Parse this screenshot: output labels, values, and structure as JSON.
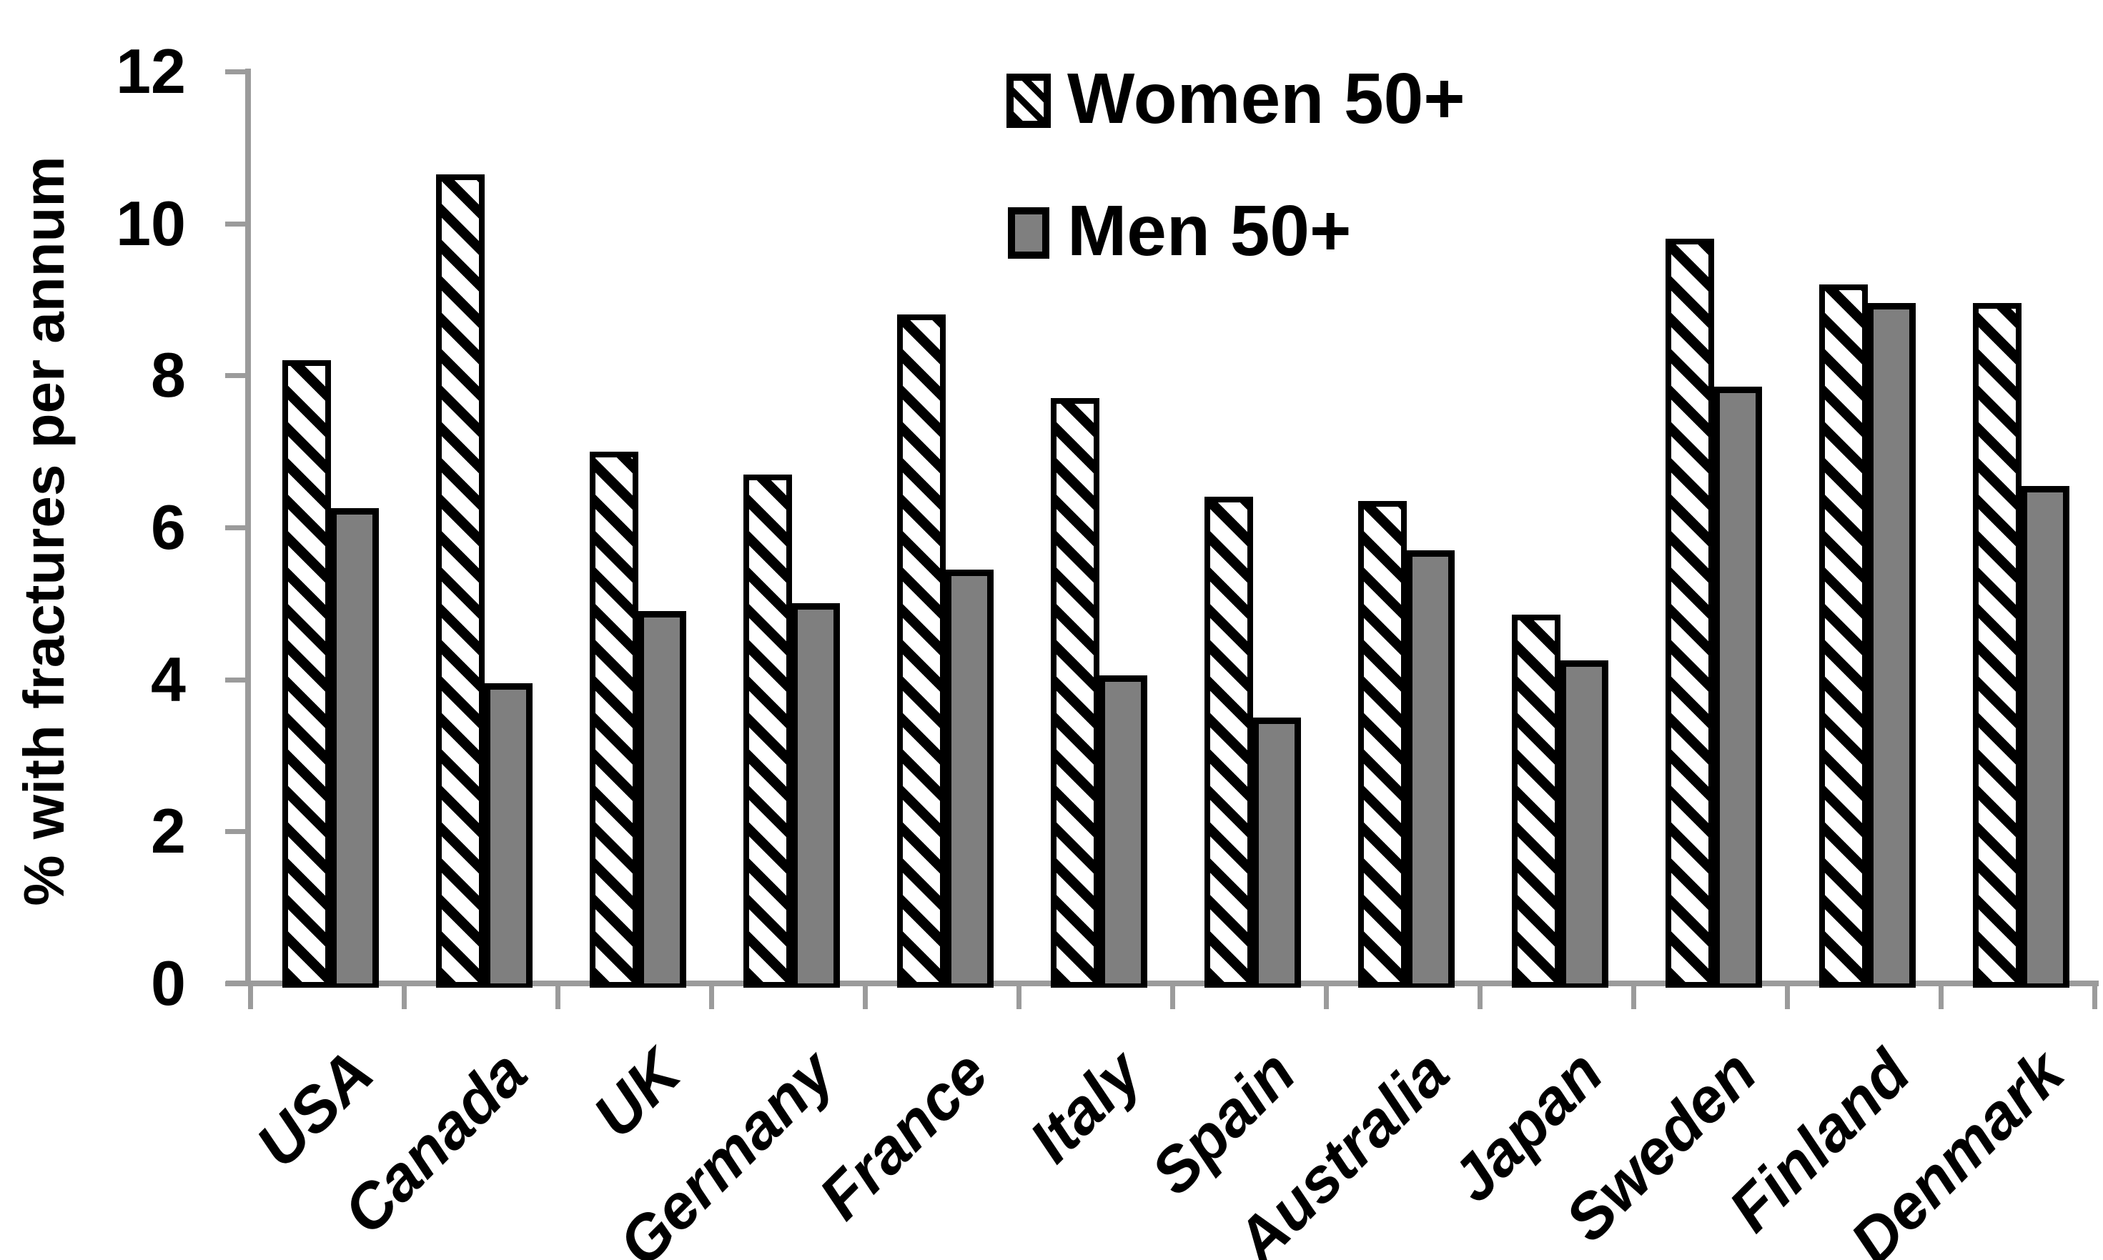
{
  "colors": {
    "axis": "#9b9b9b",
    "men_fill": "#7f7f7f",
    "bar_outline": "#000000",
    "hatch_black": "#000000",
    "hatch_white": "#ffffff",
    "text": "#000000",
    "background": "#ffffff"
  },
  "legend": {
    "women_label": "Women 50+",
    "men_label": "Men 50+"
  },
  "chart_data": {
    "type": "bar",
    "title": "",
    "xlabel": "",
    "ylabel": "% with fractures per annum",
    "ylim": [
      0,
      12
    ],
    "yticks": [
      0,
      2,
      4,
      6,
      8,
      10,
      12
    ],
    "grid": false,
    "legend_position": "top-center-inside",
    "categories": [
      "USA",
      "Canada",
      "UK",
      "Germany",
      "France",
      "Italy",
      "Spain",
      "Australia",
      "Japan",
      "Sweden",
      "Finland",
      "Denmark"
    ],
    "series": [
      {
        "name": "Women 50+",
        "style": "black-diagonal-hatch-on-white",
        "values": [
          8.2,
          10.65,
          7.0,
          6.7,
          8.8,
          7.7,
          6.4,
          6.35,
          4.85,
          9.8,
          9.2,
          8.95
        ]
      },
      {
        "name": "Men 50+",
        "style": "solid-gray",
        "values": [
          6.25,
          3.95,
          4.9,
          5.0,
          5.45,
          4.05,
          3.5,
          5.7,
          4.25,
          7.85,
          8.95,
          6.55
        ]
      }
    ]
  }
}
